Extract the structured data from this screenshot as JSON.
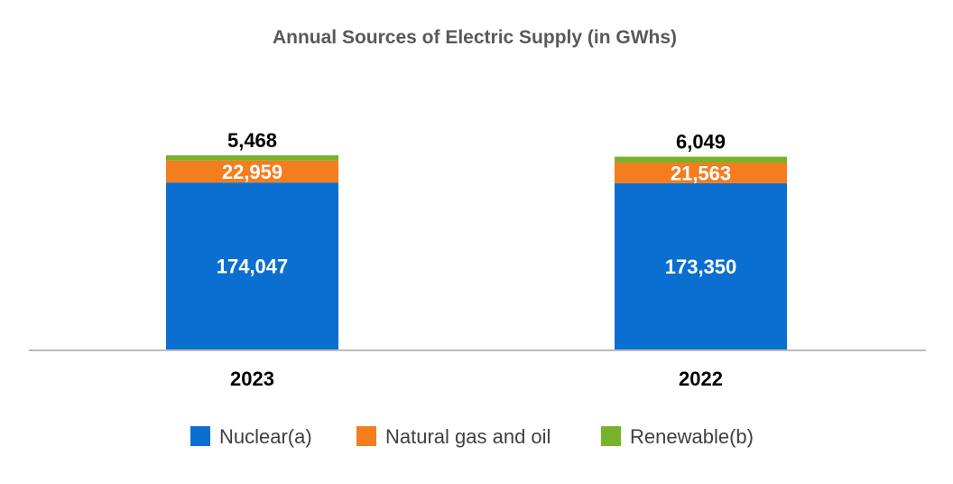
{
  "chart_data": {
    "type": "bar",
    "stacked": true,
    "title": "Annual Sources of Electric Supply (in GWhs)",
    "xlabel": "",
    "ylabel": "",
    "categories": [
      "2023",
      "2022"
    ],
    "series": [
      {
        "name": "Nuclear(a)",
        "color": "#0a6fd1",
        "values": [
          174047,
          173350
        ],
        "labels": [
          "174,047",
          "173,350"
        ],
        "label_color": "#ffffff"
      },
      {
        "name": "Natural gas and oil",
        "color": "#f47d20",
        "values": [
          22959,
          21563
        ],
        "labels": [
          "22,959",
          "21,563"
        ],
        "label_color": "#ffffff"
      },
      {
        "name": "Renewable(b)",
        "color": "#76b32a",
        "values": [
          5468,
          6049
        ],
        "labels": [
          "5,468",
          "6,049"
        ],
        "label_color": "#000000"
      }
    ],
    "ylim": [
      0,
      230000
    ],
    "grid": false,
    "legend": "bottom"
  }
}
